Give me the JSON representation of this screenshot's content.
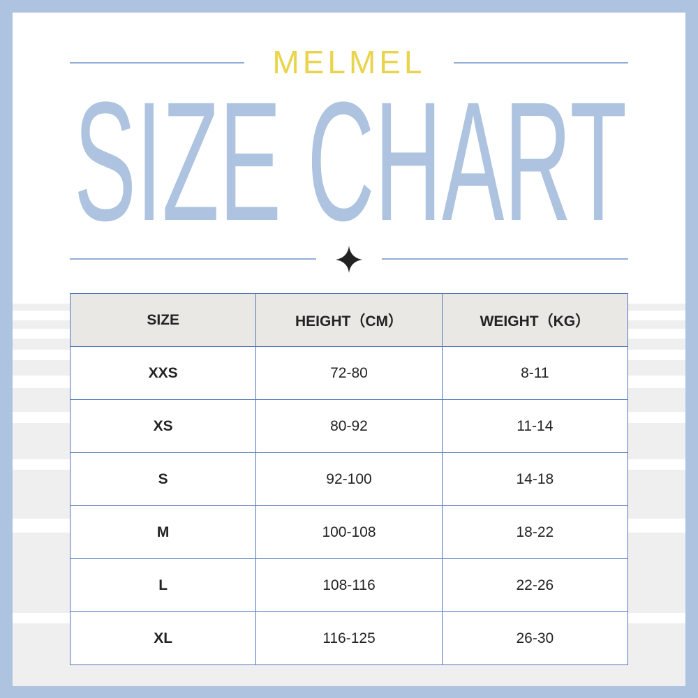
{
  "header": {
    "brand": "MELMEL",
    "title": "SIZE CHART"
  },
  "table": {
    "columns": [
      "SIZE",
      "HEIGHT（CM）",
      "WEIGHT（KG）"
    ],
    "rows": [
      [
        "XXS",
        "72-80",
        "8-11"
      ],
      [
        "XS",
        "80-92",
        "11-14"
      ],
      [
        "S",
        "92-100",
        "14-18"
      ],
      [
        "M",
        "100-108",
        "18-22"
      ],
      [
        "L",
        "108-116",
        "22-26"
      ],
      [
        "XL",
        "116-125",
        "26-30"
      ]
    ]
  }
}
